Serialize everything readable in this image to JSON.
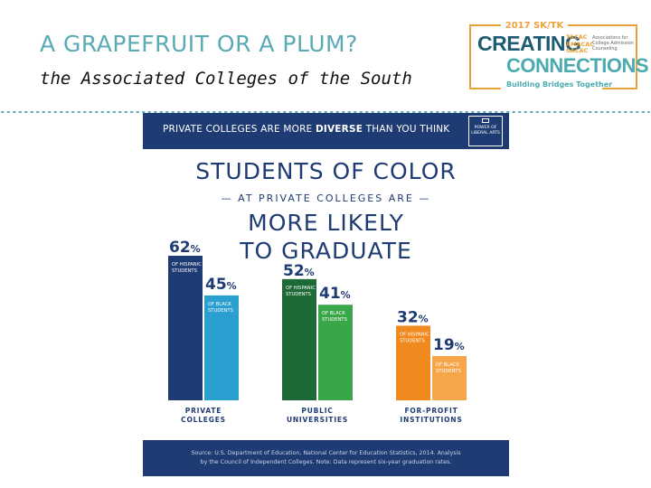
{
  "slide": {
    "title": "A GRAPEFRUIT OR A PLUM?",
    "subtitle": "the Associated Colleges of the South"
  },
  "logo": {
    "year": "2017 SK/TK",
    "line1": "CREATING",
    "line2": "CONNECTIONS",
    "orgs": [
      "TACAC",
      "RMACAC",
      "SACAC"
    ],
    "org_desc": "Associations for College Admission Counseling",
    "tagline": "Building Bridges Together",
    "colors": {
      "navy": "#1f5b73",
      "teal": "#4caab0",
      "orange": "#e8a23a"
    }
  },
  "infographic": {
    "banner": {
      "pre": "PRIVATE COLLEGES ARE MORE ",
      "bold": "DIVERSE",
      "post": " THAN YOU THINK"
    },
    "badge": "POWER OF LIBERAL ARTS",
    "headline1": "STUDENTS OF COLOR",
    "headline2": "— AT PRIVATE COLLEGES ARE —",
    "headline3": [
      "MORE LIKELY",
      "TO GRADUATE"
    ],
    "footer": [
      "Source: U.S. Department of Education, National Center for Education Statistics, 2014. Analysis",
      "by the Council of Independent Colleges. Note: Data represent six-year graduation rates."
    ]
  },
  "chart_data": {
    "type": "bar",
    "categories": [
      "PRIVATE COLLEGES",
      "PUBLIC UNIVERSITIES",
      "FOR-PROFIT INSTITUTIONS"
    ],
    "category_lines": [
      [
        "PRIVATE",
        "COLLEGES"
      ],
      [
        "PUBLIC",
        "UNIVERSITIES"
      ],
      [
        "FOR-PROFIT",
        "INSTITUTIONS"
      ]
    ],
    "series": [
      {
        "name": "OF HISPANIC STUDENTS",
        "label_lines": [
          "OF HISPANIC",
          "STUDENTS"
        ],
        "values": [
          62,
          52,
          32
        ]
      },
      {
        "name": "OF BLACK STUDENTS",
        "label_lines": [
          "OF BLACK",
          "STUDENTS"
        ],
        "values": [
          45,
          41,
          19
        ]
      }
    ],
    "colors": [
      [
        "#1f3b73",
        "#2a9fd0"
      ],
      [
        "#1e6a37",
        "#3aa64a"
      ],
      [
        "#f08a1e",
        "#f5a54a"
      ]
    ],
    "value_suffix": "%",
    "ylim": [
      0,
      100
    ],
    "grid": false
  }
}
